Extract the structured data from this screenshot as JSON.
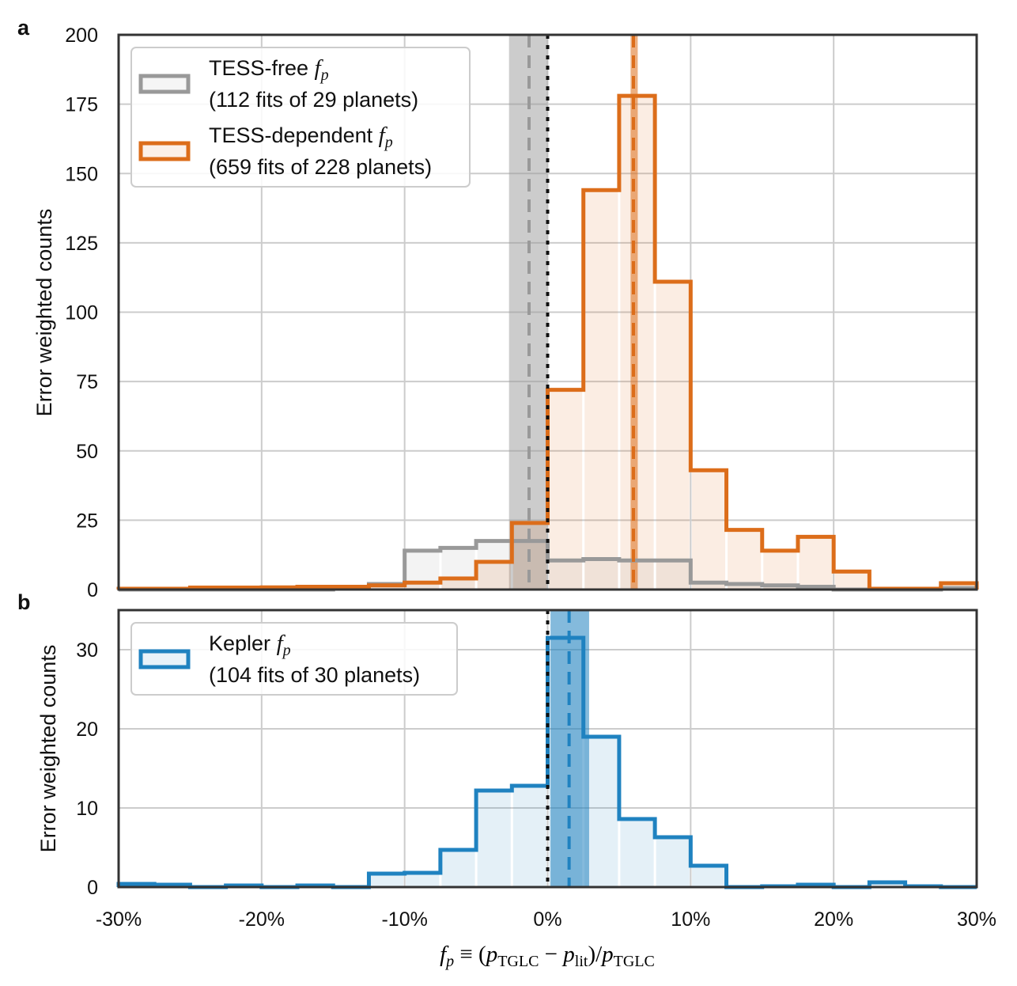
{
  "chart_data": [
    {
      "panel": "a",
      "type": "histogram-step",
      "ylabel": "Error weighted counts",
      "xlim": [
        -30,
        30
      ],
      "ylim": [
        0,
        200
      ],
      "yticks": [
        "0",
        "25",
        "50",
        "75",
        "100",
        "125",
        "150",
        "175",
        "200"
      ],
      "ytick_values": [
        0,
        25,
        50,
        75,
        100,
        125,
        150,
        175,
        200
      ],
      "xtick_values": [
        -30,
        -20,
        -10,
        0,
        10,
        20,
        30
      ],
      "grid": true,
      "legend_position": "top-left",
      "bin_edges": [
        -30,
        -27.5,
        -25,
        -22.5,
        -20,
        -17.5,
        -15,
        -12.5,
        -10,
        -7.5,
        -5,
        -2.5,
        0,
        2.5,
        5,
        7.5,
        10,
        12.5,
        15,
        17.5,
        20,
        22.5,
        25,
        27.5,
        30
      ],
      "series": [
        {
          "name_prefix": "TESS-free ",
          "name_math": "f",
          "name_sub": "p",
          "name_line2": "(112 fits of 29 planets)",
          "color": "#999999",
          "values": [
            0,
            0,
            0,
            0,
            0,
            0,
            0.3,
            2,
            14,
            15,
            17.5,
            17.5,
            10.5,
            11,
            10.5,
            10.5,
            2.5,
            2,
            1.5,
            1,
            0,
            0,
            0,
            0.5
          ],
          "median": -1.3,
          "band": [
            -2.7,
            0
          ]
        },
        {
          "name_prefix": "TESS-dependent ",
          "name_math": "f",
          "name_sub": "p",
          "name_line2": "(659 fits of 228 planets)",
          "color": "#dc6d1a",
          "values": [
            0.3,
            0.3,
            0.7,
            0.7,
            0.8,
            1,
            1,
            1.5,
            2.5,
            4,
            10,
            24,
            72,
            144,
            178,
            111,
            43,
            21.5,
            14,
            19,
            6.5,
            0.3,
            0.3,
            2.3
          ],
          "median": 6.0,
          "band": [
            5.8,
            6.3
          ]
        }
      ],
      "reference_line": 0
    },
    {
      "panel": "b",
      "type": "histogram-step",
      "ylabel": "Error weighted counts",
      "xlabel": "f_p ≡ (p_TGLC − p_lit)/p_TGLC",
      "xlim": [
        -30,
        30
      ],
      "ylim": [
        0,
        35
      ],
      "yticks": [
        "0",
        "10",
        "20",
        "30"
      ],
      "ytick_values": [
        0,
        10,
        20,
        30
      ],
      "xticks": [
        "-30%",
        "-20%",
        "-10%",
        "0%",
        "10%",
        "20%",
        "30%"
      ],
      "xtick_values": [
        -30,
        -20,
        -10,
        0,
        10,
        20,
        30
      ],
      "grid": true,
      "legend_position": "top-left",
      "bin_edges": [
        -30,
        -27.5,
        -25,
        -22.5,
        -20,
        -17.5,
        -15,
        -12.5,
        -10,
        -7.5,
        -5,
        -2.5,
        0,
        2.5,
        5,
        7.5,
        10,
        12.5,
        15,
        17.5,
        20,
        22.5,
        25,
        27.5,
        30
      ],
      "series": [
        {
          "name_prefix": "Kepler ",
          "name_math": "f",
          "name_sub": "p",
          "name_line2": "(104 fits of 30 planets)",
          "color": "#1f82c0",
          "values": [
            0.4,
            0.3,
            0,
            0.2,
            0,
            0.2,
            0,
            1.7,
            1.8,
            4.7,
            12.2,
            12.8,
            31.5,
            19,
            8.6,
            6.3,
            2.7,
            0,
            0.1,
            0.3,
            0,
            0.6,
            0.1,
            0
          ],
          "median": 1.5,
          "band": [
            0.2,
            2.9
          ]
        }
      ],
      "reference_line": 0
    }
  ],
  "panel_labels": [
    "a",
    "b"
  ],
  "xlabel": {
    "f": "f",
    "p": "p",
    "eq": " ≡ (",
    "p1": "p",
    "sub1": "TGLC",
    "minus": " − ",
    "p2": "p",
    "sub2": "lit",
    "close": ")/",
    "p3": "p",
    "sub3": "TGLC"
  }
}
